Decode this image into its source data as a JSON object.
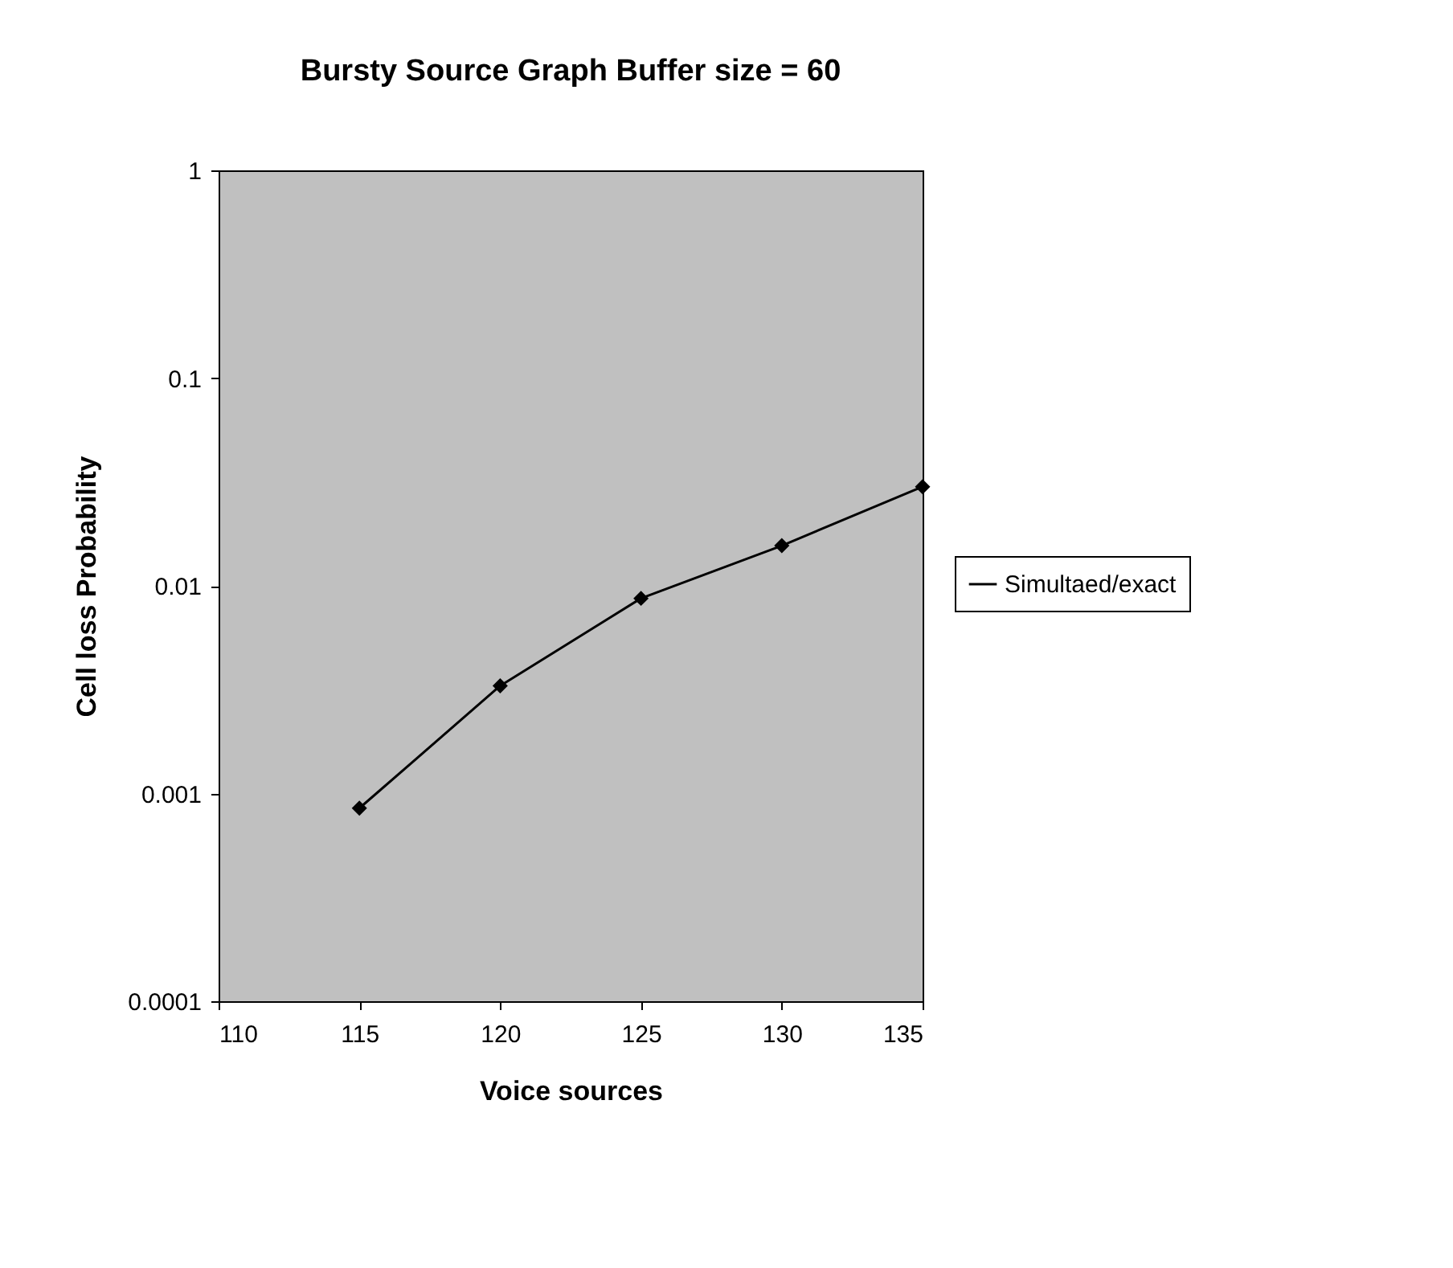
{
  "chart_data": {
    "type": "line",
    "title": "Bursty Source Graph Buffer size = 60",
    "xlabel": "Voice sources",
    "ylabel": "Cell loss Probability",
    "x": [
      115,
      120,
      125,
      130,
      135
    ],
    "series": [
      {
        "name": "Simultaed/exact",
        "color": "#000000",
        "values": [
          0.00085,
          0.0033,
          0.0087,
          0.0156,
          0.03
        ]
      }
    ],
    "xlim": [
      110,
      135
    ],
    "xticks": [
      110,
      115,
      120,
      125,
      130,
      135
    ],
    "ylim": [
      0.0001,
      1
    ],
    "yticks": [
      0.0001,
      0.001,
      0.01,
      0.1,
      1
    ],
    "log": "y",
    "grid": false,
    "legend": "right",
    "marker": "diamond",
    "line_style": "solid"
  }
}
